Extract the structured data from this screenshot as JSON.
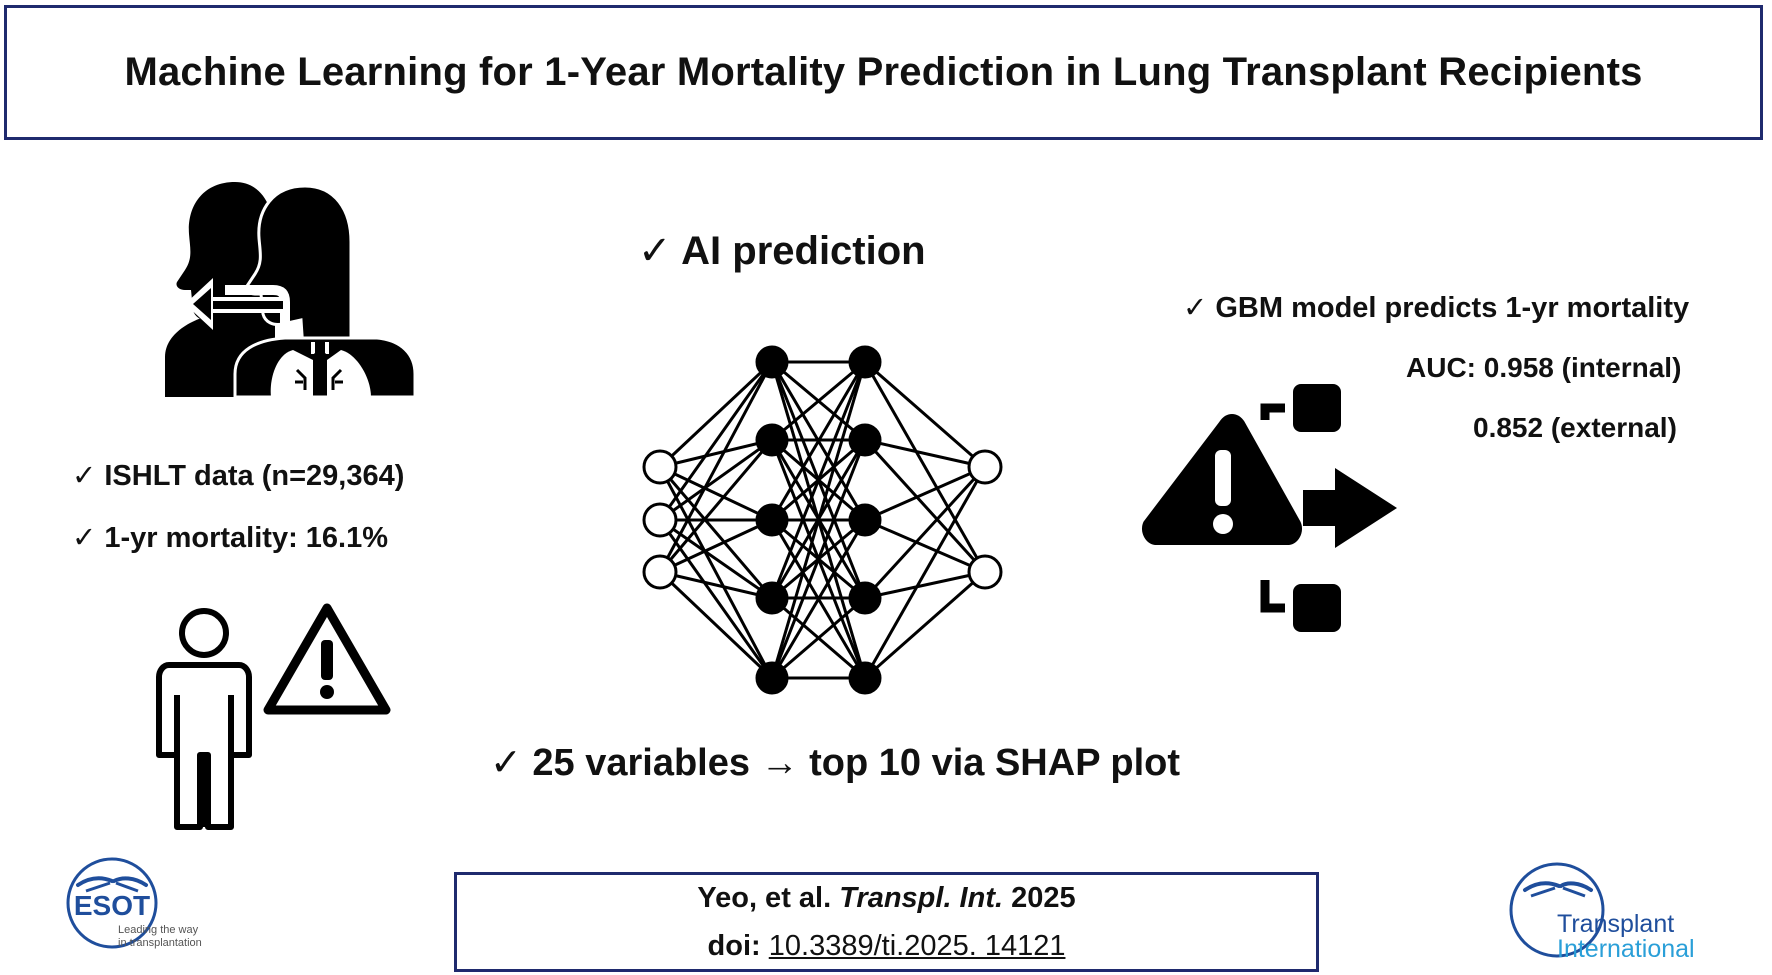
{
  "title": "Machine Learning for 1-Year Mortality Prediction in Lung Transplant Recipients",
  "left": {
    "bullet1": "✓ ISHLT data (n=29,364)",
    "bullet2": "✓ 1-yr mortality: 16.1%"
  },
  "center": {
    "heading": "✓ AI prediction",
    "footer": "✓ 25 variables → top 10 via SHAP plot"
  },
  "right": {
    "heading": "✓ GBM model predicts 1-yr mortality",
    "auc_internal": "AUC: 0.958 (internal)",
    "auc_external": "0.852 (external)"
  },
  "citation": {
    "authors": "Yeo, et al.",
    "journal": "Transpl. Int.",
    "year": "2025",
    "doi_label": "doi:",
    "doi": "10.3389/ti.2025. 14121"
  },
  "logos": {
    "esot_name": "ESOT",
    "esot_tagline1": "Leading the way",
    "esot_tagline2": "in transplantation",
    "ti_line1": "Transplant",
    "ti_line2": "International"
  },
  "icons": [
    "lung-transplant-icon",
    "person-icon",
    "warning-triangle-icon",
    "neural-network-icon",
    "risk-alert-icon"
  ],
  "colors": {
    "border": "#1f2a6e",
    "logo_blue": "#1f4e9c",
    "logo_cyan": "#2a9fd8"
  }
}
